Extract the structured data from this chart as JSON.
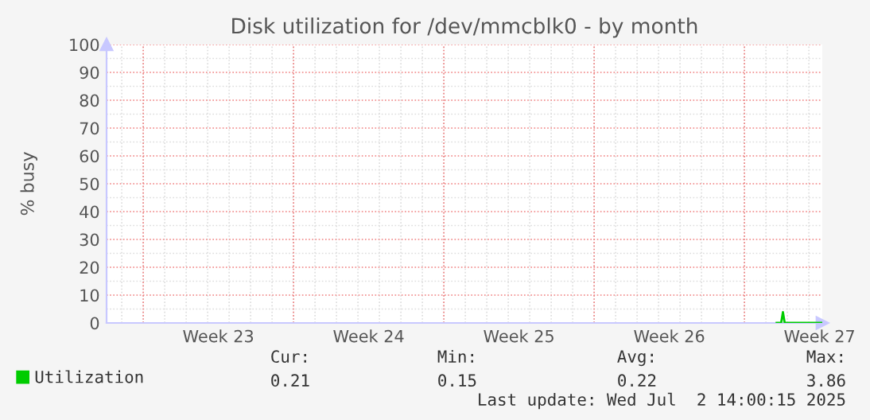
{
  "chart_data": {
    "type": "line",
    "title": "Disk utilization for /dev/mmcblk0 - by month",
    "ylabel": "% busy",
    "x": [
      "2025-07-01T12:00",
      "2025-07-01T17:00",
      "2025-07-01T19:00",
      "2025-07-01T21:00",
      "2025-07-02T06:00",
      "2025-07-02T18:00",
      "2025-07-03T06:00",
      "2025-07-03T15:00"
    ],
    "series": [
      {
        "name": "Utilization",
        "color": "#00cc00",
        "values": [
          0,
          0,
          3.86,
          0,
          0,
          0,
          0,
          0
        ]
      }
    ],
    "xlim": [
      "2025-05-31T07:00",
      "2025-07-03T15:00"
    ],
    "xticks": [
      {
        "value": "2025-06-02",
        "label": null
      },
      {
        "value": "2025-06-05T12:00",
        "label": "Week 23"
      },
      {
        "value": "2025-06-09",
        "label": null
      },
      {
        "value": "2025-06-12T12:00",
        "label": "Week 24"
      },
      {
        "value": "2025-06-16",
        "label": null
      },
      {
        "value": "2025-06-19T12:00",
        "label": "Week 25"
      },
      {
        "value": "2025-06-23",
        "label": null
      },
      {
        "value": "2025-06-26T12:00",
        "label": "Week 26"
      },
      {
        "value": "2025-06-30",
        "label": null
      },
      {
        "value": "2025-07-03T12:00",
        "label": "Week 27"
      }
    ],
    "ylim": [
      0,
      100
    ],
    "yticks": [
      0,
      10,
      20,
      30,
      40,
      50,
      60,
      70,
      80,
      90,
      100
    ],
    "grid": true,
    "legend": "bottom left",
    "annotations": [
      "Cur:",
      "0.21",
      "Min:",
      "0.15",
      "Avg:",
      "0.22",
      "Max:",
      "3.86",
      "Last update: Wed Jul  2 14:00:15 2025"
    ]
  }
}
